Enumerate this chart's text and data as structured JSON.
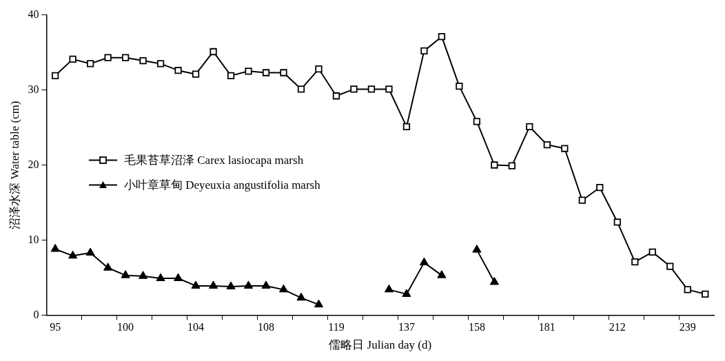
{
  "chart_data": {
    "type": "line",
    "xlabel": "儒略日 Julian day (d)",
    "ylabel": "沼泽水深 Water table (cm)",
    "categories": [
      "95",
      null,
      null,
      null,
      "100",
      null,
      null,
      null,
      "104",
      null,
      null,
      null,
      "108",
      null,
      null,
      null,
      "119",
      null,
      null,
      null,
      "137",
      null,
      null,
      null,
      "158",
      null,
      null,
      null,
      "181",
      null,
      null,
      null,
      "212",
      null,
      null,
      null,
      "239",
      null
    ],
    "series": [
      {
        "name": "毛果苔草沼泽 Carex lasiocapa marsh",
        "color": "#000000",
        "marker": "square",
        "values": [
          31.9,
          34.1,
          33.5,
          34.3,
          34.3,
          33.9,
          33.5,
          32.6,
          32.1,
          35.1,
          31.9,
          32.5,
          32.3,
          32.3,
          30.1,
          32.8,
          29.2,
          30.1,
          30.1,
          30.1,
          25.1,
          35.2,
          37.1,
          30.5,
          25.8,
          20.0,
          19.9,
          25.1,
          22.7,
          22.2,
          15.3,
          17.0,
          12.4,
          7.1,
          8.4,
          6.5,
          3.4,
          2.8
        ]
      },
      {
        "name": "小叶章草甸 Deyeuxia angustifolia marsh",
        "color": "#000000",
        "marker": "triangle",
        "values": [
          8.8,
          7.9,
          8.3,
          6.3,
          5.3,
          5.2,
          4.9,
          4.9,
          3.9,
          3.9,
          3.8,
          3.9,
          3.9,
          3.4,
          2.3,
          1.4,
          null,
          null,
          null,
          3.4,
          2.8,
          7.0,
          5.3,
          null,
          8.7,
          4.4,
          null,
          null,
          null,
          null,
          null,
          null,
          null,
          null,
          null,
          null,
          null,
          null
        ]
      }
    ],
    "ylim": [
      0,
      40
    ],
    "yticks": [
      0,
      10,
      20,
      30,
      40
    ],
    "grid": false,
    "legend": "left",
    "line_style": "solid"
  }
}
